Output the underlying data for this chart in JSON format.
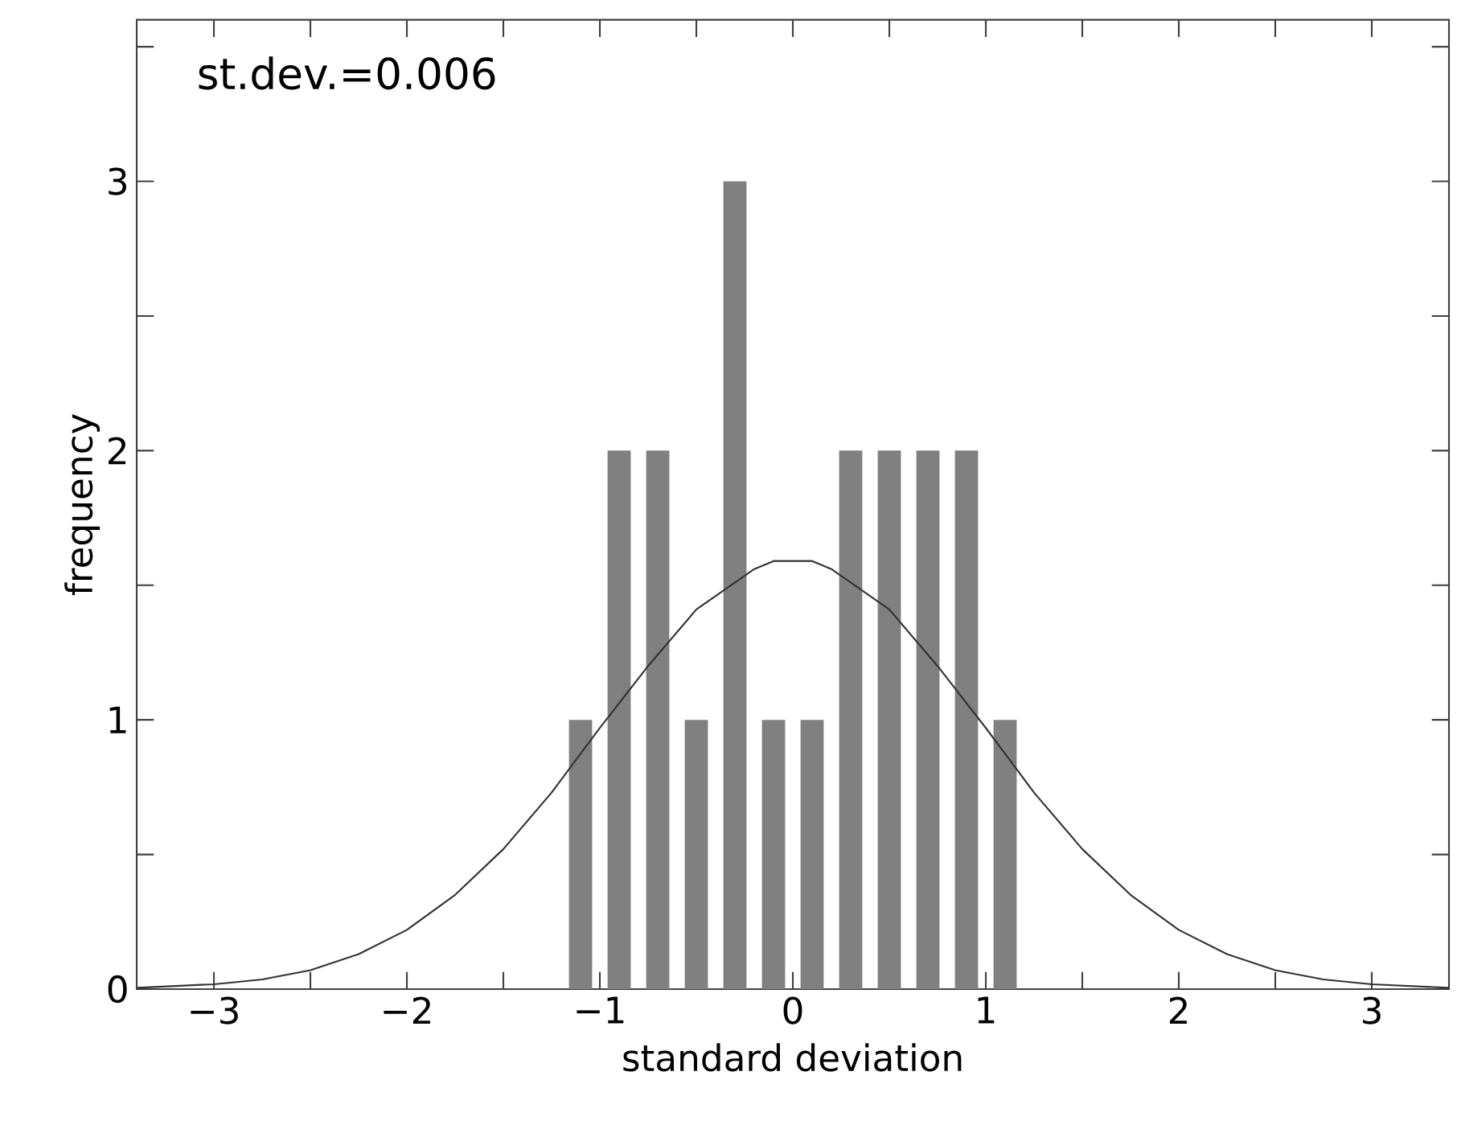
{
  "chart_data": {
    "type": "histogram",
    "xlabel": "standard deviation",
    "ylabel": "frequency",
    "annotations": [
      "st.dev.=0.006"
    ],
    "bins": [
      -1.2,
      -1.0,
      -0.8,
      -0.6,
      -0.4,
      -0.2,
      0.0,
      0.2,
      0.4,
      0.6,
      0.8,
      1.0,
      1.2
    ],
    "values": [
      1,
      2,
      2,
      1,
      3,
      1,
      1,
      2,
      2,
      2,
      2,
      1
    ],
    "color": "#808080",
    "series": [
      {
        "type": "line",
        "color": "#333333",
        "x": [
          -3.4,
          -3.0,
          -2.75,
          -2.5,
          -2.25,
          -2.0,
          -1.75,
          -1.5,
          -1.25,
          -1.0,
          -0.75,
          -0.5,
          -0.2,
          -0.1,
          0.1,
          0.2,
          0.5,
          0.75,
          1.0,
          1.25,
          1.5,
          1.75,
          2.0,
          2.25,
          2.5,
          2.75,
          3.0,
          3.4
        ],
        "values": [
          0.005,
          0.018,
          0.036,
          0.07,
          0.13,
          0.22,
          0.35,
          0.52,
          0.73,
          0.97,
          1.2,
          1.41,
          1.56,
          1.59,
          1.59,
          1.56,
          1.41,
          1.2,
          0.97,
          0.73,
          0.52,
          0.35,
          0.22,
          0.13,
          0.07,
          0.036,
          0.018,
          0.005
        ]
      }
    ],
    "xlim": [
      -3.4,
      3.4
    ],
    "ylim": [
      0,
      3.6
    ],
    "xticks": [
      {
        "value": -3,
        "label": "−3"
      },
      {
        "value": -2.5,
        "label": null
      },
      {
        "value": -2,
        "label": "−2"
      },
      {
        "value": -1.5,
        "label": null
      },
      {
        "value": -1,
        "label": "−1"
      },
      {
        "value": -0.5,
        "label": null
      },
      0,
      {
        "value": 0.5,
        "label": null
      },
      1,
      {
        "value": 1.5,
        "label": null
      },
      2,
      {
        "value": 2.5,
        "label": null
      },
      3
    ],
    "yticks": [
      0,
      {
        "value": 0.5,
        "label": null
      },
      1,
      {
        "value": 1.5,
        "label": null
      },
      2,
      {
        "value": 2.5,
        "label": null
      },
      3,
      {
        "value": 3.5,
        "label": null
      }
    ]
  }
}
